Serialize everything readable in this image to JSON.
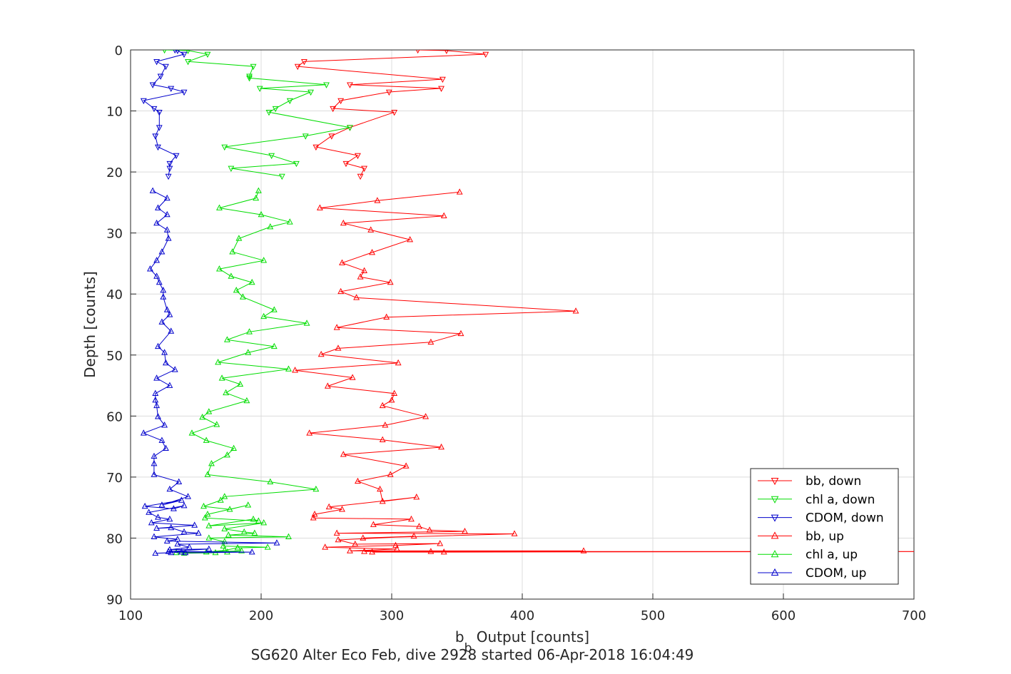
{
  "chart_data": {
    "type": "line",
    "title": "SG620 Alter Eco Feb, dive 2928 started 06-Apr-2018 16:04:49",
    "xlabel_main": "b",
    "xlabel_sub": "b",
    "xlabel_rest": " Output [counts]",
    "ylabel": "Depth [counts]",
    "xlim": [
      100,
      700
    ],
    "ylim": [
      0,
      90
    ],
    "y_reversed": true,
    "grid": true,
    "legend_position": "bottom-right",
    "x_ticks": [
      "100",
      "200",
      "300",
      "400",
      "500",
      "600",
      "700"
    ],
    "y_ticks": [
      "0",
      "10",
      "20",
      "30",
      "40",
      "50",
      "60",
      "70",
      "80",
      "90"
    ],
    "series": [
      {
        "name": "bb, down",
        "color": "#ff0000",
        "marker": "triangle-down",
        "points": [
          [
            320,
            0
          ],
          [
            342,
            0.1
          ],
          [
            372,
            0.7
          ],
          [
            233,
            1.9
          ],
          [
            228,
            2.7
          ],
          [
            339,
            4.8
          ],
          [
            268,
            5.7
          ],
          [
            338,
            6.3
          ],
          [
            298,
            6.9
          ],
          [
            261,
            8.3
          ],
          [
            255,
            9.6
          ],
          [
            302,
            10.2
          ],
          [
            268,
            12.7
          ],
          [
            254,
            14.1
          ],
          [
            242,
            15.9
          ],
          [
            274,
            17.3
          ],
          [
            265,
            18.6
          ],
          [
            279,
            19.4
          ],
          [
            276,
            20.7
          ]
        ]
      },
      {
        "name": "chl a, down",
        "color": "#00dd00",
        "marker": "triangle-down",
        "points": [
          [
            126,
            0
          ],
          [
            144,
            0.1
          ],
          [
            159,
            0.7
          ],
          [
            144,
            1.9
          ],
          [
            194,
            2.7
          ],
          [
            191,
            4.3
          ],
          [
            191,
            4.6
          ],
          [
            250,
            5.7
          ],
          [
            199,
            6.3
          ],
          [
            238,
            6.9
          ],
          [
            222,
            8.3
          ],
          [
            211,
            9.6
          ],
          [
            206,
            10.2
          ],
          [
            268,
            12.7
          ],
          [
            234,
            14.1
          ],
          [
            172,
            15.9
          ],
          [
            208,
            17.3
          ],
          [
            227,
            18.6
          ],
          [
            177,
            19.4
          ],
          [
            216,
            20.7
          ]
        ]
      },
      {
        "name": "CDOM, down",
        "color": "#0000cc",
        "marker": "triangle-down",
        "points": [
          [
            134,
            0
          ],
          [
            136,
            0.1
          ],
          [
            141,
            0.7
          ],
          [
            120,
            1.9
          ],
          [
            127,
            2.7
          ],
          [
            123,
            4.3
          ],
          [
            117,
            5.7
          ],
          [
            131,
            6.3
          ],
          [
            141,
            6.9
          ],
          [
            110,
            8.3
          ],
          [
            118,
            9.6
          ],
          [
            122,
            10.2
          ],
          [
            122,
            12.7
          ],
          [
            119,
            14.1
          ],
          [
            121,
            15.9
          ],
          [
            135,
            17.3
          ],
          [
            130,
            18.6
          ],
          [
            130,
            19.4
          ],
          [
            129,
            20.7
          ]
        ]
      },
      {
        "name": "bb, up",
        "color": "#ff0000",
        "marker": "triangle-up",
        "points": [
          [
            352,
            23.3
          ],
          [
            289,
            24.7
          ],
          [
            245,
            25.9
          ],
          [
            340,
            27.2
          ],
          [
            263,
            28.4
          ],
          [
            284,
            29.5
          ],
          [
            314,
            31.1
          ],
          [
            285,
            33.2
          ],
          [
            262,
            34.9
          ],
          [
            279,
            36.2
          ],
          [
            276,
            37.2
          ],
          [
            299,
            38.1
          ],
          [
            261,
            39.6
          ],
          [
            273,
            40.6
          ],
          [
            441,
            42.8
          ],
          [
            296,
            43.8
          ],
          [
            258,
            45.5
          ],
          [
            353,
            46.5
          ],
          [
            330,
            47.9
          ],
          [
            259,
            48.9
          ],
          [
            246,
            49.9
          ],
          [
            305,
            51.3
          ],
          [
            226,
            52.5
          ],
          [
            270,
            53.7
          ],
          [
            251,
            55.1
          ],
          [
            302,
            56.3
          ],
          [
            300,
            57.4
          ],
          [
            293,
            58.3
          ],
          [
            326,
            60.1
          ],
          [
            295,
            61.5
          ],
          [
            237,
            62.8
          ],
          [
            293,
            63.9
          ],
          [
            338,
            65.1
          ],
          [
            263,
            66.3
          ],
          [
            311,
            68.2
          ],
          [
            299,
            69.6
          ],
          [
            274,
            70.7
          ],
          [
            291,
            72.0
          ],
          [
            293,
            74.0
          ],
          [
            319,
            73.3
          ],
          [
            252,
            74.9
          ],
          [
            262,
            75.3
          ],
          [
            241,
            76.1
          ],
          [
            240,
            76.7
          ],
          [
            315,
            76.9
          ],
          [
            286,
            77.8
          ],
          [
            321,
            78.1
          ],
          [
            329,
            78.7
          ],
          [
            356,
            78.9
          ],
          [
            258,
            79.2
          ],
          [
            394,
            79.3
          ],
          [
            278,
            80.0
          ],
          [
            317,
            79.7
          ],
          [
            259,
            80.3
          ],
          [
            272,
            81.0
          ],
          [
            337,
            80.9
          ],
          [
            303,
            81.2
          ],
          [
            249,
            81.5
          ],
          [
            304,
            81.8
          ],
          [
            268,
            82.1
          ],
          [
            447,
            82.1
          ],
          [
            279,
            82.2
          ],
          [
            330,
            82.2
          ],
          [
            711,
            82.2
          ],
          [
            340,
            82.3
          ],
          [
            285,
            82.3
          ]
        ]
      },
      {
        "name": "chl a, up",
        "color": "#00dd00",
        "marker": "triangle-up",
        "points": [
          [
            198,
            23.1
          ],
          [
            196,
            24.3
          ],
          [
            168,
            25.9
          ],
          [
            200,
            27.0
          ],
          [
            222,
            28.2
          ],
          [
            207,
            29.0
          ],
          [
            183,
            30.9
          ],
          [
            178,
            33.1
          ],
          [
            202,
            34.5
          ],
          [
            168,
            35.9
          ],
          [
            177,
            37.1
          ],
          [
            193,
            38.1
          ],
          [
            181,
            39.4
          ],
          [
            186,
            40.5
          ],
          [
            210,
            42.6
          ],
          [
            202,
            43.7
          ],
          [
            235,
            44.8
          ],
          [
            191,
            46.2
          ],
          [
            174,
            47.5
          ],
          [
            210,
            48.6
          ],
          [
            190,
            49.6
          ],
          [
            167,
            51.2
          ],
          [
            221,
            52.3
          ],
          [
            170,
            53.8
          ],
          [
            184,
            54.8
          ],
          [
            173,
            56.2
          ],
          [
            189,
            57.5
          ],
          [
            160,
            59.3
          ],
          [
            155,
            60.2
          ],
          [
            166,
            61.4
          ],
          [
            147,
            62.8
          ],
          [
            158,
            64.0
          ],
          [
            179,
            65.3
          ],
          [
            174,
            66.4
          ],
          [
            162,
            67.8
          ],
          [
            159,
            69.6
          ],
          [
            207,
            70.8
          ],
          [
            242,
            72.0
          ],
          [
            172,
            73.2
          ],
          [
            169,
            73.8
          ],
          [
            156,
            74.8
          ],
          [
            176,
            75.3
          ],
          [
            190,
            74.6
          ],
          [
            159,
            76.1
          ],
          [
            157,
            76.7
          ],
          [
            198,
            77.2
          ],
          [
            194,
            76.9
          ],
          [
            160,
            78.0
          ],
          [
            202,
            77.5
          ],
          [
            172,
            78.5
          ],
          [
            187,
            79.0
          ],
          [
            195,
            79.2
          ],
          [
            175,
            79.5
          ],
          [
            221,
            79.8
          ],
          [
            160,
            80.0
          ],
          [
            172,
            80.6
          ],
          [
            171,
            81.3
          ],
          [
            205,
            81.5
          ],
          [
            182,
            81.6
          ],
          [
            172,
            82.0
          ],
          [
            158,
            82.3
          ],
          [
            141,
            82.5
          ],
          [
            165,
            82.4
          ],
          [
            185,
            82.1
          ],
          [
            135,
            82.4
          ],
          [
            174,
            82.3
          ]
        ]
      },
      {
        "name": "CDOM, up",
        "color": "#0000cc",
        "marker": "triangle-up",
        "points": [
          [
            117,
            23.1
          ],
          [
            128,
            24.3
          ],
          [
            121,
            25.9
          ],
          [
            128,
            27.0
          ],
          [
            120,
            28.4
          ],
          [
            128,
            29.5
          ],
          [
            129,
            30.9
          ],
          [
            124,
            33.1
          ],
          [
            120,
            34.5
          ],
          [
            115,
            35.9
          ],
          [
            120,
            37.1
          ],
          [
            122,
            38.1
          ],
          [
            125,
            39.4
          ],
          [
            125,
            40.5
          ],
          [
            128,
            42.6
          ],
          [
            130,
            43.4
          ],
          [
            124,
            44.6
          ],
          [
            131,
            46.1
          ],
          [
            121,
            48.6
          ],
          [
            126,
            49.6
          ],
          [
            127,
            51.3
          ],
          [
            134,
            52.4
          ],
          [
            120,
            53.8
          ],
          [
            130,
            55.0
          ],
          [
            119,
            56.3
          ],
          [
            119,
            57.4
          ],
          [
            120,
            58.3
          ],
          [
            121,
            60.1
          ],
          [
            126,
            61.5
          ],
          [
            110,
            62.8
          ],
          [
            124,
            64.0
          ],
          [
            127,
            65.3
          ],
          [
            118,
            66.6
          ],
          [
            118,
            67.8
          ],
          [
            118,
            69.6
          ],
          [
            137,
            70.8
          ],
          [
            130,
            72.0
          ],
          [
            144,
            73.2
          ],
          [
            124,
            74.6
          ],
          [
            139,
            73.8
          ],
          [
            111,
            74.8
          ],
          [
            133,
            75.2
          ],
          [
            141,
            74.7
          ],
          [
            114,
            75.8
          ],
          [
            121,
            76.6
          ],
          [
            130,
            76.9
          ],
          [
            116,
            77.5
          ],
          [
            149,
            77.9
          ],
          [
            120,
            78.4
          ],
          [
            131,
            78.3
          ],
          [
            141,
            79.0
          ],
          [
            152,
            79.2
          ],
          [
            118,
            79.8
          ],
          [
            136,
            80.2
          ],
          [
            128,
            80.5
          ],
          [
            212,
            80.8
          ],
          [
            136,
            81.0
          ],
          [
            145,
            81.5
          ],
          [
            130,
            81.9
          ],
          [
            160,
            81.8
          ],
          [
            129,
            82.2
          ],
          [
            193,
            82.3
          ],
          [
            142,
            82.4
          ],
          [
            139,
            82.3
          ],
          [
            119,
            82.5
          ],
          [
            131,
            82.4
          ]
        ]
      }
    ]
  }
}
